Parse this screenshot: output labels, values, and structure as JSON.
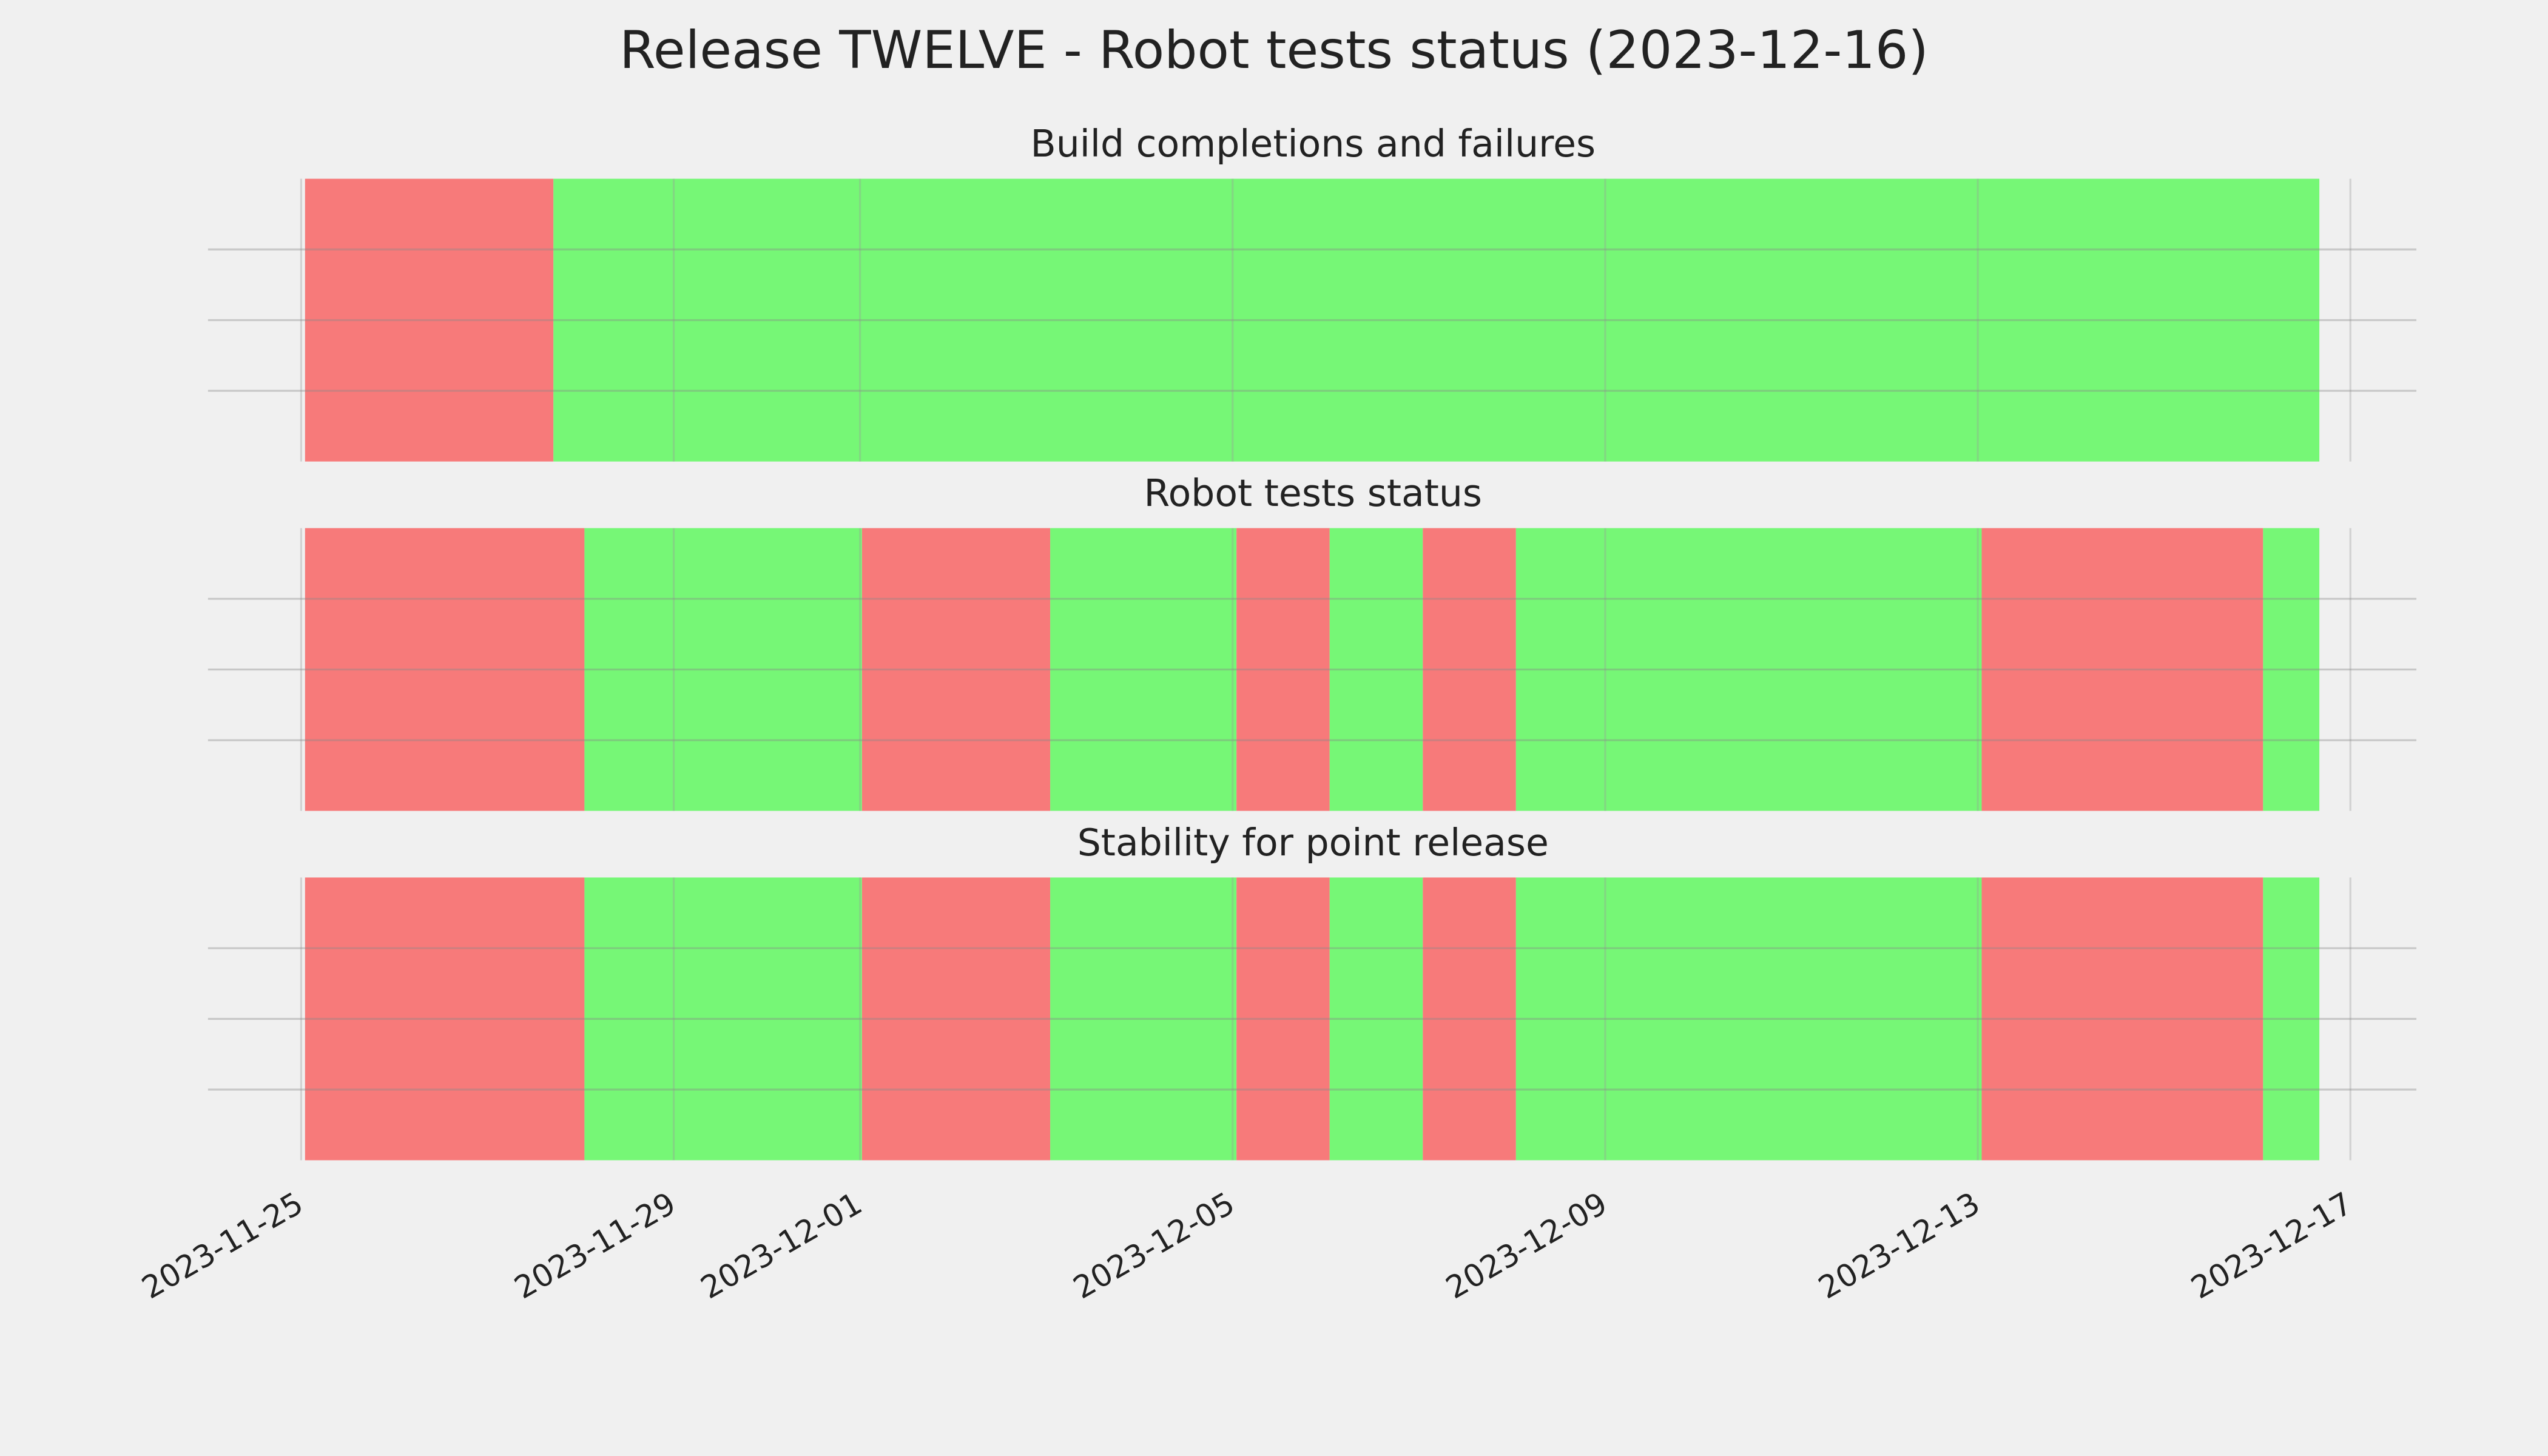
{
  "title": "Release TWELVE - Robot tests status (2023-12-16)",
  "chart_data": [
    {
      "type": "span",
      "title": "Build completions and failures",
      "xlim": [
        "2023-11-24",
        "2023-12-17T17:00"
      ],
      "xticks": [
        "2023-11-25",
        "2023-11-29",
        "2023-12-01",
        "2023-12-05",
        "2023-12-09",
        "2023-12-13",
        "2023-12-17"
      ],
      "ylim": [
        0,
        1
      ],
      "yticks": [
        0.25,
        0.5,
        0.75
      ],
      "grid": true,
      "segments": [
        {
          "start": "2023-11-25T01:00",
          "end": "2023-11-27T17:00",
          "color": "#f77a7a"
        },
        {
          "start": "2023-11-27T17:00",
          "end": "2023-12-16T16:00",
          "color": "#76f776"
        }
      ]
    },
    {
      "type": "span",
      "title": "Robot tests status",
      "xlim": [
        "2023-11-24",
        "2023-12-17T17:00"
      ],
      "xticks": [
        "2023-11-25",
        "2023-11-29",
        "2023-12-01",
        "2023-12-05",
        "2023-12-09",
        "2023-12-13",
        "2023-12-17"
      ],
      "ylim": [
        0,
        1
      ],
      "yticks": [
        0.25,
        0.5,
        0.75
      ],
      "grid": true,
      "segments": [
        {
          "start": "2023-11-25T01:00",
          "end": "2023-11-28T01:00",
          "color": "#f77a7a"
        },
        {
          "start": "2023-11-28T01:00",
          "end": "2023-12-01T00:30",
          "color": "#76f776"
        },
        {
          "start": "2023-12-01T00:30",
          "end": "2023-12-03T01:00",
          "color": "#f77a7a"
        },
        {
          "start": "2023-12-03T01:00",
          "end": "2023-12-05T01:00",
          "color": "#76f776"
        },
        {
          "start": "2023-12-05T01:00",
          "end": "2023-12-06T01:00",
          "color": "#f77a7a"
        },
        {
          "start": "2023-12-06T01:00",
          "end": "2023-12-07T01:00",
          "color": "#76f776"
        },
        {
          "start": "2023-12-07T01:00",
          "end": "2023-12-08T01:00",
          "color": "#f77a7a"
        },
        {
          "start": "2023-12-08T01:00",
          "end": "2023-12-13T01:00",
          "color": "#76f776"
        },
        {
          "start": "2023-12-13T01:00",
          "end": "2023-12-16T01:30",
          "color": "#f77a7a"
        },
        {
          "start": "2023-12-16T01:30",
          "end": "2023-12-16T16:00",
          "color": "#76f776"
        }
      ]
    },
    {
      "type": "span",
      "title": "Stability for point release",
      "xlim": [
        "2023-11-24",
        "2023-12-17T17:00"
      ],
      "xticks": [
        "2023-11-25",
        "2023-11-29",
        "2023-12-01",
        "2023-12-05",
        "2023-12-09",
        "2023-12-13",
        "2023-12-17"
      ],
      "ylim": [
        0,
        1
      ],
      "yticks": [
        0.25,
        0.5,
        0.75
      ],
      "grid": true,
      "segments": [
        {
          "start": "2023-11-25T01:00",
          "end": "2023-11-28T01:00",
          "color": "#f77a7a"
        },
        {
          "start": "2023-11-28T01:00",
          "end": "2023-12-01T00:30",
          "color": "#76f776"
        },
        {
          "start": "2023-12-01T00:30",
          "end": "2023-12-03T01:00",
          "color": "#f77a7a"
        },
        {
          "start": "2023-12-03T01:00",
          "end": "2023-12-05T01:00",
          "color": "#76f776"
        },
        {
          "start": "2023-12-05T01:00",
          "end": "2023-12-06T01:00",
          "color": "#f77a7a"
        },
        {
          "start": "2023-12-06T01:00",
          "end": "2023-12-07T01:00",
          "color": "#76f776"
        },
        {
          "start": "2023-12-07T01:00",
          "end": "2023-12-08T01:00",
          "color": "#f77a7a"
        },
        {
          "start": "2023-12-08T01:00",
          "end": "2023-12-13T01:00",
          "color": "#76f776"
        },
        {
          "start": "2023-12-13T01:00",
          "end": "2023-12-16T01:30",
          "color": "#f77a7a"
        },
        {
          "start": "2023-12-16T01:30",
          "end": "2023-12-16T16:00",
          "color": "#76f776"
        }
      ]
    }
  ]
}
